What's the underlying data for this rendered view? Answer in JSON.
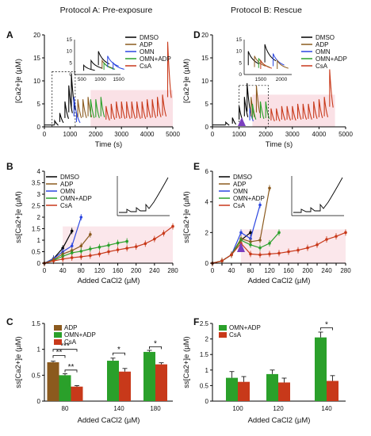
{
  "columns": {
    "left": "Protocol A: Pre-exposure",
    "right": "Protocol B: Rescue"
  },
  "colors": {
    "DMSO": "#000000",
    "ADP": "#8B5A1E",
    "OMN": "#2B46E0",
    "OMN+ADP": "#2AA02A",
    "CsA": "#C8391A",
    "shade": "#F6C9D2",
    "arrow": "#7B3FC0"
  },
  "chart_data": [
    {
      "panel": "A",
      "type": "line",
      "xlabel": "Time (s)",
      "ylabel": "[Ca2+]e (µM)",
      "xticks": [
        0,
        1000,
        2000,
        3000,
        4000,
        5000
      ],
      "yticks": [
        0,
        5,
        10,
        15,
        20
      ],
      "xlim": [
        0,
        5000
      ],
      "ylim": [
        0,
        20
      ],
      "legend": [
        "DMSO",
        "ADP",
        "OMN",
        "OMN+ADP",
        "CsA"
      ],
      "series": [
        {
          "name": "DMSO",
          "spikes": [
            [
              400,
              1.3
            ],
            [
              600,
              3.0
            ],
            [
              800,
              5.5
            ],
            [
              950,
              9.0
            ],
            [
              1050,
              11.5
            ]
          ]
        },
        {
          "name": "OMN",
          "spikes": [
            [
              1150,
              6.5
            ],
            [
              1250,
              3.0
            ]
          ]
        },
        {
          "name": "ADP",
          "spikes": [
            [
              1300,
              6.0
            ],
            [
              1500,
              6.0
            ],
            [
              1700,
              6.5
            ]
          ]
        },
        {
          "name": "OMN+ADP",
          "spikes": [
            [
              1800,
              6.0
            ],
            [
              2000,
              6.0
            ],
            [
              2200,
              6.5
            ]
          ]
        },
        {
          "name": "CsA",
          "spikes": [
            [
              2400,
              4.5
            ],
            [
              2600,
              5.0
            ],
            [
              2800,
              5.5
            ],
            [
              3000,
              5.5
            ],
            [
              3200,
              5.5
            ],
            [
              3400,
              5.5
            ],
            [
              3600,
              5.5
            ],
            [
              3800,
              5.5
            ],
            [
              4000,
              6.0
            ],
            [
              4200,
              6.0
            ],
            [
              4400,
              6.5
            ],
            [
              4600,
              7.0
            ],
            [
              4800,
              18.5
            ]
          ]
        }
      ],
      "inset": {
        "xticks": [
          500,
          1000,
          1500
        ],
        "yticks": [
          0,
          5,
          10,
          15
        ]
      }
    },
    {
      "panel": "D",
      "type": "line",
      "xlabel": "Time (s)",
      "ylabel": "[Ca2+]e (µM)",
      "xticks": [
        0,
        1000,
        2000,
        3000,
        4000,
        5000
      ],
      "yticks": [
        0,
        5,
        10,
        15,
        20
      ],
      "xlim": [
        0,
        5000
      ],
      "ylim": [
        0,
        20
      ],
      "legend": [
        "DMSO",
        "ADP",
        "OMN",
        "OMN+ADP",
        "CsA"
      ],
      "arrow_at": 1100,
      "series": [
        {
          "name": "DMSO",
          "spikes": [
            [
              500,
              1.0
            ],
            [
              750,
              2.0
            ],
            [
              1000,
              4.5
            ],
            [
              1200,
              6.5
            ],
            [
              1300,
              9.5
            ]
          ]
        },
        {
          "name": "OMN",
          "spikes": [
            [
              1400,
              4.0
            ]
          ]
        },
        {
          "name": "ADP",
          "spikes": [
            [
              1450,
              6.5
            ],
            [
              1650,
              9.0
            ]
          ]
        },
        {
          "name": "OMN+ADP",
          "spikes": [
            [
              1500,
              5.0
            ],
            [
              1800,
              5.5
            ],
            [
              2000,
              5.5
            ]
          ]
        },
        {
          "name": "CsA",
          "spikes": [
            [
              2200,
              4.0
            ],
            [
              2400,
              4.0
            ],
            [
              2600,
              4.5
            ],
            [
              2800,
              4.5
            ],
            [
              3000,
              4.5
            ],
            [
              3200,
              5.0
            ],
            [
              3400,
              5.0
            ],
            [
              3600,
              5.0
            ],
            [
              3800,
              5.5
            ],
            [
              4000,
              6.0
            ],
            [
              4200,
              6.5
            ],
            [
              4400,
              12.5
            ]
          ]
        }
      ],
      "inset": {
        "xticks": [
          1500,
          2000
        ],
        "yticks": [
          0,
          5,
          10,
          15
        ]
      }
    },
    {
      "panel": "B",
      "type": "line",
      "xlabel": "Added CaCl2 (µM)",
      "ylabel": "ss[Ca2+]e (µM)",
      "xticks": [
        0,
        40,
        80,
        120,
        160,
        200,
        240,
        280
      ],
      "yticks": [
        0,
        0.5,
        1,
        1.5,
        2,
        2.5,
        3,
        3.5,
        4
      ],
      "xlim": [
        0,
        280
      ],
      "ylim": [
        0,
        4
      ],
      "legend": [
        "DMSO",
        "ADP",
        "OMN",
        "OMN+ADP",
        "CsA"
      ],
      "series": [
        {
          "name": "DMSO",
          "x": [
            0,
            20,
            40,
            60
          ],
          "y": [
            0,
            0.2,
            0.65,
            1.4
          ]
        },
        {
          "name": "OMN",
          "x": [
            0,
            20,
            40,
            60,
            80
          ],
          "y": [
            0,
            0.2,
            0.5,
            0.75,
            2.0
          ]
        },
        {
          "name": "ADP",
          "x": [
            0,
            20,
            40,
            60,
            80,
            100
          ],
          "y": [
            0,
            0.15,
            0.4,
            0.55,
            0.75,
            1.25
          ]
        },
        {
          "name": "OMN+ADP",
          "x": [
            0,
            20,
            40,
            60,
            80,
            100,
            120,
            140,
            160,
            180
          ],
          "y": [
            0,
            0.12,
            0.3,
            0.45,
            0.52,
            0.62,
            0.7,
            0.78,
            0.88,
            0.95
          ]
        },
        {
          "name": "CsA",
          "x": [
            0,
            20,
            40,
            60,
            80,
            100,
            120,
            140,
            160,
            180,
            200,
            220,
            240,
            260,
            280
          ],
          "y": [
            0,
            0.1,
            0.18,
            0.24,
            0.28,
            0.33,
            0.4,
            0.5,
            0.58,
            0.65,
            0.72,
            0.85,
            1.05,
            1.3,
            1.6
          ]
        }
      ]
    },
    {
      "panel": "E",
      "type": "line",
      "xlabel": "Added CaCl2 (µM)",
      "ylabel": "ss[Ca2+]e (µM)",
      "xticks": [
        0,
        20,
        40,
        60,
        80,
        100,
        120,
        140,
        160,
        180,
        200,
        220,
        240,
        260,
        280
      ],
      "yticks": [
        0,
        2,
        4,
        6
      ],
      "xlim": [
        0,
        280
      ],
      "ylim": [
        0,
        6
      ],
      "legend": [
        "DMSO",
        "ADP",
        "OMN",
        "OMN+ADP",
        "CsA"
      ],
      "arrow_at": 60,
      "series": [
        {
          "name": "DMSO",
          "x": [
            0,
            20,
            40,
            60,
            80
          ],
          "y": [
            0,
            0.15,
            0.55,
            1.5,
            2.0
          ]
        },
        {
          "name": "OMN",
          "x": [
            0,
            20,
            40,
            60,
            80,
            100
          ],
          "y": [
            0,
            0.15,
            0.55,
            2.0,
            1.6,
            3.8
          ]
        },
        {
          "name": "ADP",
          "x": [
            0,
            20,
            40,
            60,
            80,
            100,
            120
          ],
          "y": [
            0,
            0.15,
            0.55,
            1.6,
            1.4,
            1.5,
            4.9
          ]
        },
        {
          "name": "OMN+ADP",
          "x": [
            0,
            20,
            40,
            60,
            80,
            100,
            120,
            140
          ],
          "y": [
            0,
            0.15,
            0.55,
            1.5,
            1.2,
            1.0,
            1.3,
            2.0
          ]
        },
        {
          "name": "CsA",
          "x": [
            0,
            20,
            40,
            60,
            80,
            100,
            120,
            140,
            160,
            180,
            200,
            220,
            240,
            260,
            280
          ],
          "y": [
            0,
            0.15,
            0.55,
            1.3,
            0.6,
            0.55,
            0.6,
            0.65,
            0.75,
            0.85,
            1.0,
            1.2,
            1.55,
            1.75,
            2.0
          ]
        }
      ]
    },
    {
      "panel": "C",
      "type": "bar",
      "xlabel": "Added CaCl2 (µM)",
      "ylabel": "ss[Ca2+]e (µM)",
      "categories": [
        "80",
        "140",
        "180"
      ],
      "yticks": [
        0,
        0.5,
        1,
        1.5
      ],
      "ylim": [
        0,
        1.5
      ],
      "legend": [
        "ADP",
        "OMN+ADP",
        "CsA"
      ],
      "series": [
        {
          "name": "ADP",
          "values": [
            0.75,
            null,
            null
          ],
          "err": [
            0.02,
            null,
            null
          ]
        },
        {
          "name": "OMN+ADP",
          "values": [
            0.5,
            0.78,
            0.95
          ],
          "err": [
            0.03,
            0.05,
            0.03
          ]
        },
        {
          "name": "CsA",
          "values": [
            0.28,
            0.57,
            0.71
          ],
          "err": [
            0.02,
            0.06,
            0.03
          ]
        }
      ],
      "significance": [
        "***",
        "**",
        "**",
        "*",
        "*"
      ]
    },
    {
      "panel": "F",
      "type": "bar",
      "xlabel": "Added CaCl2 (µM)",
      "ylabel": "ss[Ca2+]e (µM)",
      "categories": [
        "100",
        "120",
        "140"
      ],
      "yticks": [
        0,
        0.5,
        1,
        1.5,
        2,
        2.5
      ],
      "ylim": [
        0,
        2.5
      ],
      "legend": [
        "OMN+ADP",
        "CsA"
      ],
      "series": [
        {
          "name": "OMN+ADP",
          "values": [
            0.75,
            0.87,
            2.05
          ],
          "err": [
            0.2,
            0.13,
            0.17
          ]
        },
        {
          "name": "CsA",
          "values": [
            0.62,
            0.6,
            0.65
          ],
          "err": [
            0.17,
            0.14,
            0.17
          ]
        }
      ],
      "significance": [
        "*"
      ]
    }
  ],
  "panel_labels": [
    "A",
    "D",
    "B",
    "E",
    "C",
    "F"
  ]
}
